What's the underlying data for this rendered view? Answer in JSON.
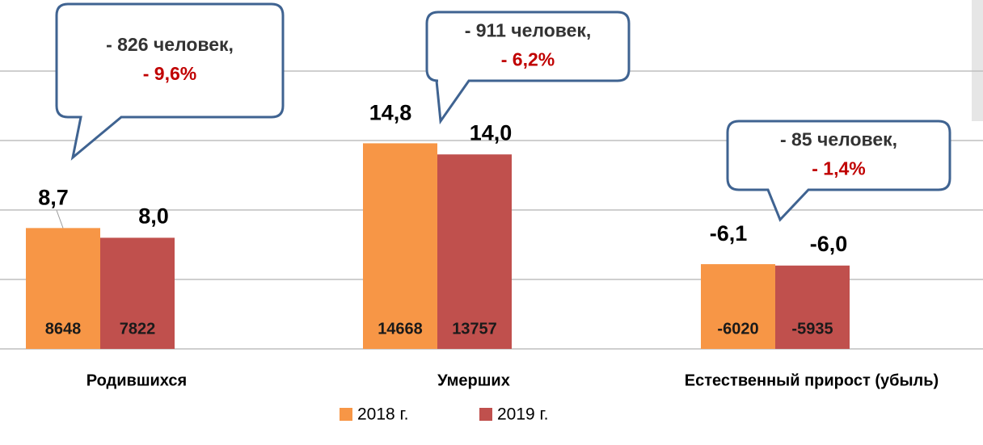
{
  "chart_data": {
    "type": "bar",
    "categories": [
      "Родившихся",
      "Умерших",
      "Естественный прирост (убыль)"
    ],
    "series": [
      {
        "name": "2018 г.",
        "color": "#f79646",
        "values": [
          8.7,
          14.8,
          -6.1
        ],
        "value_labels": [
          "8,7",
          "14,8",
          "-6,1"
        ],
        "counts": [
          8648,
          14668,
          -6020
        ]
      },
      {
        "name": "2019 г.",
        "color": "#c0504d",
        "values": [
          8.0,
          14.0,
          -6.0
        ],
        "value_labels": [
          "8,0",
          "14,0",
          "-6,0"
        ],
        "counts": [
          7822,
          13757,
          -5935
        ]
      }
    ],
    "ylim": [
      0,
      25
    ],
    "yticks": [
      0,
      5,
      10,
      15,
      20
    ],
    "grid": true,
    "legend": "bottom",
    "annotations": [
      {
        "line1": "- 826 человек,",
        "line2": "- 9,6%"
      },
      {
        "line1": "- 911 человек,",
        "line2": "- 6,2%"
      },
      {
        "line1": "- 85 человек,",
        "line2": "- 1,4%"
      }
    ]
  }
}
